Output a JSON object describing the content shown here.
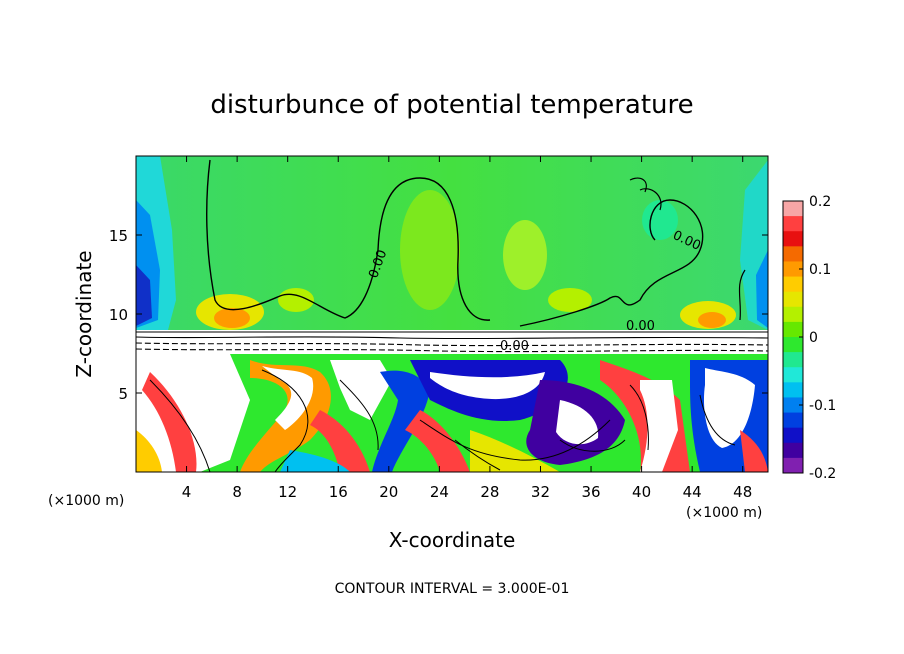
{
  "chart_data": {
    "type": "heatmap",
    "title": "disturbunce of potential temperature",
    "xlabel": "X-coordinate",
    "ylabel": "Z-coordinate",
    "x_unit": "(×1000 m)",
    "y_unit": "(×1000 m)",
    "xlim": [
      0,
      50
    ],
    "ylim": [
      0,
      20
    ],
    "x_ticks": [
      "4",
      "8",
      "12",
      "16",
      "20",
      "24",
      "28",
      "32",
      "36",
      "40",
      "44",
      "48"
    ],
    "y_ticks": [
      "5",
      "10",
      "15"
    ],
    "colorbar": {
      "range": [
        -0.2,
        0.2
      ],
      "tick_labels": [
        "0.2",
        "0.1",
        "0",
        "-0.1",
        "-0.2"
      ],
      "colors": [
        "#f7a6a6",
        "#ff4040",
        "#e81010",
        "#f56a00",
        "#ff9a00",
        "#ffcc00",
        "#e6e600",
        "#b4f000",
        "#66e800",
        "#2ee82e",
        "#20e890",
        "#20e8d8",
        "#00c0f0",
        "#0080f0",
        "#0040e0",
        "#1010c8",
        "#4000a0",
        "#8020b0"
      ]
    },
    "contour_labels": [
      "0.00",
      "0.00",
      "0.00",
      "0.00"
    ],
    "annotation": "CONTOUR INTERVAL = 3.000E-01"
  }
}
